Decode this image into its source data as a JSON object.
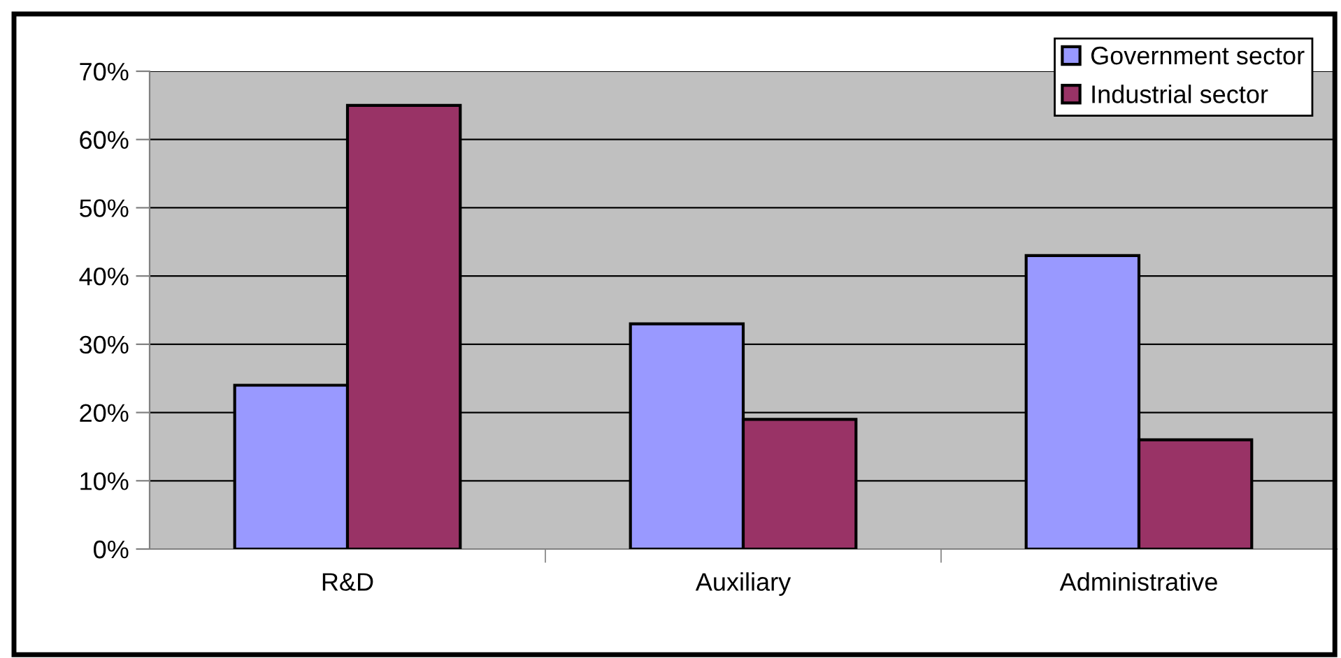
{
  "chart_data": {
    "type": "bar",
    "categories": [
      "R&D",
      "Auxiliary",
      "Administrative"
    ],
    "series": [
      {
        "name": "Government sector",
        "color": "#9999ff",
        "values": [
          24,
          33,
          43
        ]
      },
      {
        "name": "Industrial sector",
        "color": "#993366",
        "values": [
          65,
          19,
          16
        ]
      }
    ],
    "ylim": [
      0,
      70
    ],
    "yticks": [
      {
        "value": 0,
        "label": "0%"
      },
      {
        "value": 10,
        "label": "10%"
      },
      {
        "value": 20,
        "label": "20%"
      },
      {
        "value": 30,
        "label": "30%"
      },
      {
        "value": 40,
        "label": "40%"
      },
      {
        "value": 50,
        "label": "50%"
      },
      {
        "value": 60,
        "label": "60%"
      },
      {
        "value": 70,
        "label": "70%"
      }
    ],
    "grid": "y",
    "legend": "top right"
  }
}
